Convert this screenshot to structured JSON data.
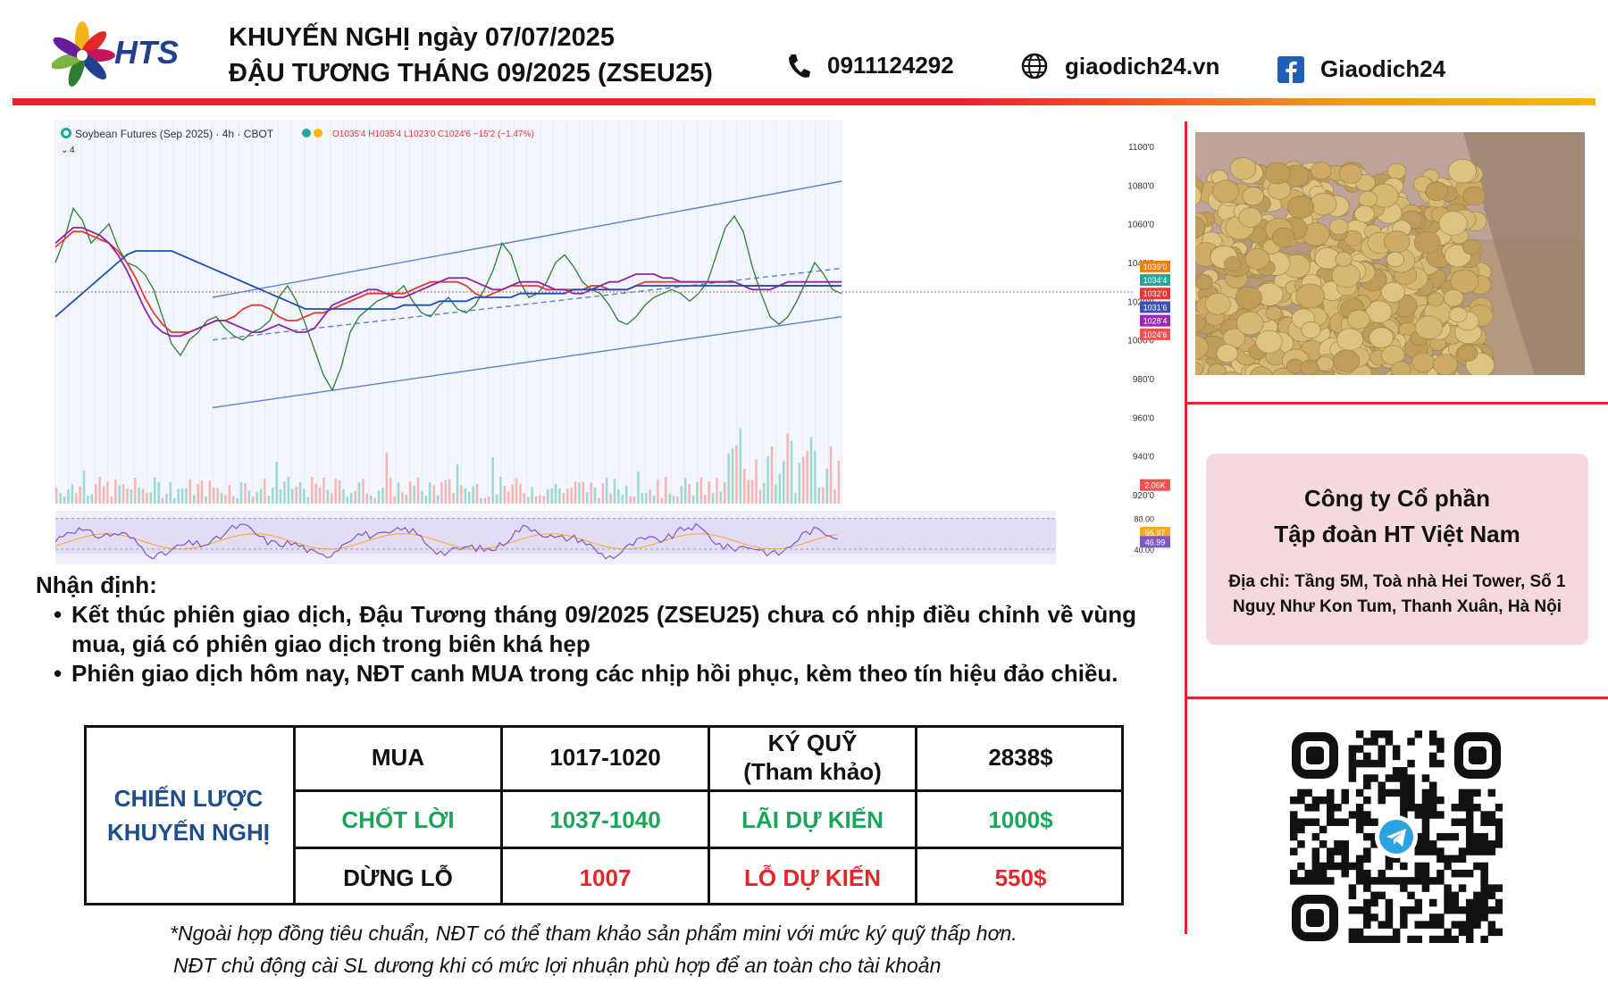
{
  "header": {
    "brand": "HTS",
    "title_line1": "KHUYẾN NGHỊ ngày 07/07/2025",
    "title_line2": "ĐẬU TƯƠNG THÁNG 09/2025 (ZSEU25)",
    "phone": "0911124292",
    "website": "giaodich24.vn",
    "facebook": "Giaodich24",
    "icons": [
      "phone-icon",
      "globe-icon",
      "facebook-icon"
    ]
  },
  "chart_data": {
    "type": "line",
    "title": "Soybean Futures (Sep 2025) · 4h · CBOT",
    "collapse_label": "4",
    "ohlc_label": "O1035'4 H1035'4 L1023'0 C1024'6 −15'2 (−1.47%)",
    "y_ticks": [
      "1100'0",
      "1080'0",
      "1060'0",
      "1040'0",
      "1020'0",
      "1000'0",
      "980'0",
      "960'0",
      "940'0",
      "920'0"
    ],
    "ylim": [
      920,
      1100
    ],
    "bars": 200,
    "price_tags": [
      {
        "label": "1039'0",
        "value": 1039,
        "color": "#f57c00"
      },
      {
        "label": "1034'4",
        "value": 1034.5,
        "color": "#26a69a"
      },
      {
        "label": "1032'0",
        "value": 1032,
        "color": "#e53935"
      },
      {
        "label": "1031'6",
        "value": 1031.75,
        "color": "#3f51b5"
      },
      {
        "label": "1028'4",
        "value": 1028.5,
        "color": "#9c27b0"
      },
      {
        "label": "1024'6",
        "value": 1024.75,
        "color": "#ef5350"
      }
    ],
    "volume_tag": "2.06K",
    "series": [
      {
        "color": "#2e7d32",
        "values": [
          1040,
          1052,
          1068,
          1062,
          1050,
          1055,
          1060,
          1048,
          1040,
          1038,
          1034,
          1026,
          1012,
          998,
          992,
          1000,
          1004,
          1010,
          1012,
          1006,
          1002,
          1000,
          1004,
          1006,
          1010,
          1022,
          1028,
          1020,
          1008,
          995,
          982,
          974,
          986,
          1004,
          1012,
          1016,
          1020,
          1022,
          1024,
          1028,
          1020,
          1014,
          1012,
          1018,
          1022,
          1016,
          1014,
          1018,
          1026,
          1036,
          1050,
          1044,
          1030,
          1022,
          1024,
          1030,
          1040,
          1044,
          1038,
          1030,
          1026,
          1024,
          1018,
          1010,
          1008,
          1012,
          1018,
          1022,
          1024,
          1026,
          1024,
          1020,
          1024,
          1030,
          1044,
          1058,
          1064,
          1056,
          1038,
          1024,
          1012,
          1008,
          1012,
          1020,
          1030,
          1040,
          1034,
          1026,
          1024
        ]
      },
      {
        "color": "#e53935",
        "values": [
          1048,
          1052,
          1056,
          1056,
          1054,
          1052,
          1050,
          1046,
          1040,
          1032,
          1022,
          1014,
          1008,
          1004,
          1004,
          1004,
          1006,
          1008,
          1010,
          1010,
          1012,
          1016,
          1018,
          1018,
          1016,
          1012,
          1010,
          1010,
          1012,
          1014,
          1014,
          1016,
          1018,
          1020,
          1022,
          1024,
          1024,
          1024,
          1024,
          1024,
          1026,
          1028,
          1030,
          1030,
          1030,
          1030,
          1028,
          1024,
          1022,
          1024,
          1026,
          1028,
          1028,
          1028,
          1028,
          1026,
          1026,
          1026,
          1026,
          1026,
          1028,
          1028,
          1026,
          1026,
          1026,
          1028,
          1030,
          1030,
          1030,
          1030,
          1030,
          1030,
          1030,
          1030,
          1030,
          1030,
          1030,
          1028,
          1028,
          1028,
          1028,
          1028,
          1028,
          1028,
          1028,
          1028,
          1028,
          1028,
          1028
        ]
      },
      {
        "color": "#8e24aa",
        "values": [
          1050,
          1054,
          1058,
          1058,
          1056,
          1054,
          1050,
          1044,
          1036,
          1026,
          1016,
          1008,
          1004,
          1002,
          1002,
          1004,
          1006,
          1008,
          1010,
          1010,
          1008,
          1006,
          1004,
          1004,
          1006,
          1008,
          1006,
          1004,
          1004,
          1006,
          1012,
          1018,
          1020,
          1022,
          1024,
          1026,
          1026,
          1024,
          1022,
          1022,
          1024,
          1026,
          1028,
          1030,
          1032,
          1032,
          1032,
          1030,
          1028,
          1026,
          1026,
          1028,
          1030,
          1030,
          1030,
          1028,
          1026,
          1026,
          1024,
          1024,
          1026,
          1028,
          1030,
          1030,
          1032,
          1034,
          1034,
          1034,
          1032,
          1032,
          1030,
          1030,
          1030,
          1030,
          1030,
          1030,
          1030,
          1028,
          1026,
          1026,
          1026,
          1028,
          1030,
          1030,
          1030,
          1030,
          1030,
          1030,
          1030
        ]
      },
      {
        "color": "#1e4fb0",
        "values": [
          1012,
          1016,
          1020,
          1024,
          1028,
          1032,
          1036,
          1040,
          1044,
          1046,
          1046,
          1046,
          1046,
          1046,
          1044,
          1042,
          1040,
          1038,
          1036,
          1034,
          1032,
          1030,
          1028,
          1026,
          1024,
          1022,
          1020,
          1018,
          1016,
          1016,
          1016,
          1016,
          1016,
          1016,
          1016,
          1016,
          1016,
          1016,
          1016,
          1018,
          1018,
          1018,
          1018,
          1020,
          1020,
          1020,
          1020,
          1022,
          1022,
          1022,
          1022,
          1022,
          1024,
          1024,
          1024,
          1024,
          1024,
          1024,
          1026,
          1026,
          1026,
          1026,
          1026,
          1026,
          1026,
          1028,
          1028,
          1028,
          1028,
          1028,
          1028,
          1028,
          1028,
          1028,
          1028,
          1028,
          1028,
          1028,
          1028,
          1028,
          1028,
          1028,
          1028,
          1028,
          1028,
          1028,
          1028,
          1028,
          1028
        ]
      }
    ],
    "trendlines": [
      {
        "from": [
          40,
          1022
        ],
        "to": [
          200,
          1082
        ],
        "color": "#5c7fd0",
        "dashed": false
      },
      {
        "from": [
          40,
          1000
        ],
        "to": [
          200,
          1037
        ],
        "color": "#5c7fd0",
        "dashed": true
      },
      {
        "from": [
          40,
          965
        ],
        "to": [
          200,
          1012
        ],
        "color": "#5c7fd0",
        "dashed": false
      }
    ],
    "rsi_ticks": [
      "80.00",
      "55.97",
      "46.99",
      "40.00"
    ],
    "rsi_tags": [
      {
        "label": "55.97",
        "color": "#f9a825"
      },
      {
        "label": "46.99",
        "color": "#7e57c2"
      }
    ]
  },
  "side": {
    "company_line1": "Công ty Cổ phần",
    "company_line2": "Tập đoàn HT Việt Nam",
    "address_line1": "Địa chỉ: Tầng 5M, Toà nhà Hei Tower, Số 1",
    "address_line2": "Nguỵ Như Kon Tum, Thanh Xuân, Hà Nội",
    "qr_icon": "telegram-icon"
  },
  "analysis": {
    "heading": "Nhận định:",
    "bullet1": "Kết thúc phiên giao dịch, Đậu Tương tháng 09/2025 (ZSEU25) chưa có nhịp điều chỉnh về vùng mua, giá có phiên giao dịch trong biên khá hẹp",
    "bullet2": "Phiên giao dịch hôm nay, NĐT canh MUA trong các nhịp hồi phục, kèm theo tín hiệu đảo chiều."
  },
  "strategy": {
    "label_line1": "CHIẾN LƯỢC",
    "label_line2": "KHUYẾN NGHỊ",
    "buy_label": "MUA",
    "buy_value": "1017-1020",
    "margin_label_line1": "KÝ QUỸ",
    "margin_label_line2": "(Tham khảo)",
    "margin_value": "2838$",
    "tp_label": "CHỐT LỜI",
    "tp_value": "1037-1040",
    "profit_label": "LÃI DỰ KIẾN",
    "profit_value": "1000$",
    "sl_label": "DỪNG LỖ",
    "sl_value": "1007",
    "loss_label": "LỖ DỰ KIẾN",
    "loss_value": "550$",
    "colors": {
      "green": "#1aa55a",
      "red": "#e3262a",
      "blue": "#1f4e8c"
    }
  },
  "footnotes": {
    "line1": "*Ngoài hợp đồng tiêu chuẩn, NĐT có thể tham khảo sản phẩm mini với mức ký quỹ thấp hơn.",
    "line2": "NĐT chủ động cài SL dương khi có mức lợi nhuận phù hợp để an toàn cho tài khoản"
  }
}
